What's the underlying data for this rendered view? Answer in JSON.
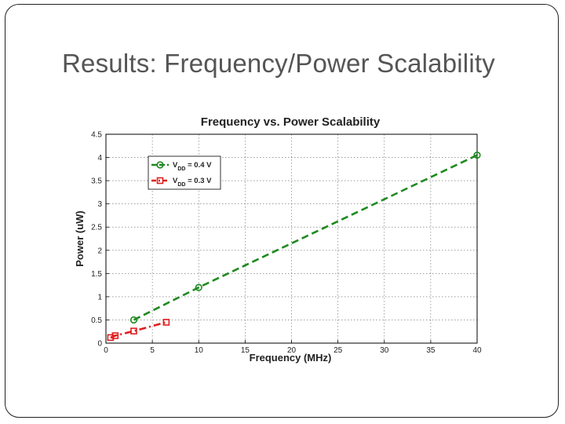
{
  "slide": {
    "title": "Results: Frequency/Power Scalability"
  },
  "chart_data": {
    "type": "line",
    "title": "Frequency vs. Power Scalability",
    "xlabel": "Frequency (MHz)",
    "ylabel": "Power (uW)",
    "xlim": [
      0,
      40
    ],
    "ylim": [
      0,
      4.5
    ],
    "xticks": [
      0,
      5,
      10,
      15,
      20,
      25,
      30,
      35,
      40
    ],
    "yticks": [
      0,
      0.5,
      1,
      1.5,
      2,
      2.5,
      3,
      3.5,
      4,
      4.5
    ],
    "xtick_labels": [
      "0",
      "5",
      "10",
      "15",
      "20",
      "25",
      "30",
      "35",
      "40"
    ],
    "ytick_labels": [
      "0",
      "0.5",
      "1",
      "1.5",
      "2",
      "2.5",
      "3",
      "3.5",
      "4",
      "4.5"
    ],
    "grid": true,
    "legend_position": "top-left",
    "series": [
      {
        "name": "V_DD = 0.4 V",
        "legend_main": "V",
        "legend_sub": "DD",
        "legend_rest": " = 0.4 V",
        "color": "#1e8a1e",
        "marker": "circle",
        "line": "dashed",
        "x": [
          3,
          10,
          40
        ],
        "y": [
          0.5,
          1.2,
          4.05
        ]
      },
      {
        "name": "V_DD = 0.3 V",
        "legend_main": "V",
        "legend_sub": "DD",
        "legend_rest": " = 0.3 V",
        "color": "#e01e1e",
        "marker": "square",
        "line": "dash-dot",
        "x": [
          0.5,
          1,
          3,
          6.5
        ],
        "y": [
          0.12,
          0.16,
          0.26,
          0.45
        ]
      }
    ]
  }
}
